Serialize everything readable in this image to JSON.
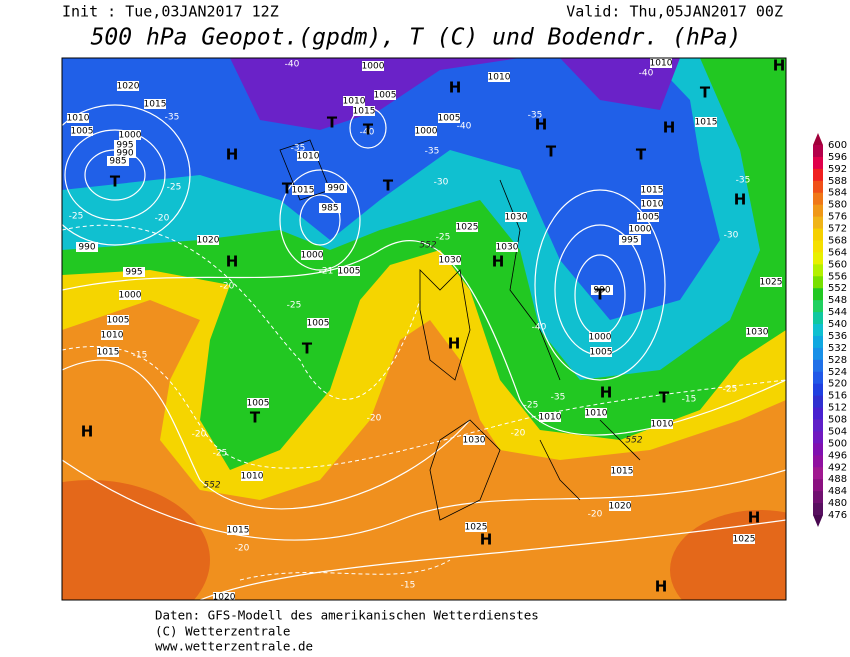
{
  "header": {
    "init": "Init : Tue,03JAN2017 12Z",
    "valid": "Valid: Thu,05JAN2017 00Z",
    "title": "500 hPa Geopot.(gpdm), T (C) und Bodendr. (hPa)"
  },
  "colorbar": {
    "labels": [
      600,
      596,
      592,
      588,
      584,
      580,
      576,
      572,
      568,
      564,
      560,
      556,
      552,
      548,
      544,
      540,
      536,
      532,
      528,
      524,
      520,
      516,
      512,
      508,
      504,
      500,
      496,
      492,
      488,
      484,
      480,
      476
    ]
  },
  "map": {
    "highs_lows": [
      "H",
      "H",
      "H",
      "H",
      "H",
      "H",
      "H",
      "H",
      "H",
      "H",
      "H",
      "H",
      "H",
      "H",
      "T",
      "T",
      "T",
      "T",
      "T",
      "T",
      "T",
      "T",
      "T",
      "T",
      "T",
      "T"
    ],
    "pressure_labels": [
      "1020",
      "1015",
      "1010",
      "1005",
      "1000",
      "995",
      "990",
      "985",
      "990",
      "995",
      "1000",
      "1005",
      "1010",
      "1015",
      "1020",
      "1000",
      "1005",
      "1010",
      "1015",
      "1010",
      "1015",
      "990",
      "985",
      "1000",
      "1005",
      "1005",
      "1005",
      "1010",
      "1015",
      "1020",
      "1025",
      "1030",
      "1030",
      "1030",
      "1000",
      "1005",
      "1010",
      "1015",
      "1010",
      "1005",
      "1000",
      "995",
      "990",
      "1000",
      "1005",
      "1010",
      "1010",
      "1010",
      "1015",
      "1020",
      "1025",
      "1025",
      "1030",
      "1015",
      "1025",
      "1030",
      "1010"
    ],
    "temperature_labels": [
      "-25",
      "-20",
      "-25",
      "-20",
      "-25",
      "-15",
      "-20",
      "-25",
      "-20",
      "-20",
      "-15",
      "-40",
      "-35",
      "-35",
      "-30",
      "-40",
      "-35",
      "-25",
      "-21",
      "-40",
      "-35",
      "-25",
      "-20",
      "-35",
      "-30",
      "-25",
      "-15",
      "-20",
      "-40",
      "-40",
      "-35"
    ],
    "geopotential_labels": [
      "552",
      "552",
      "552"
    ]
  },
  "footer": [
    "Daten: GFS-Modell des amerikanischen Wetterdienstes",
    "(C) Wetterzentrale",
    "www.wetterzentrale.de"
  ]
}
